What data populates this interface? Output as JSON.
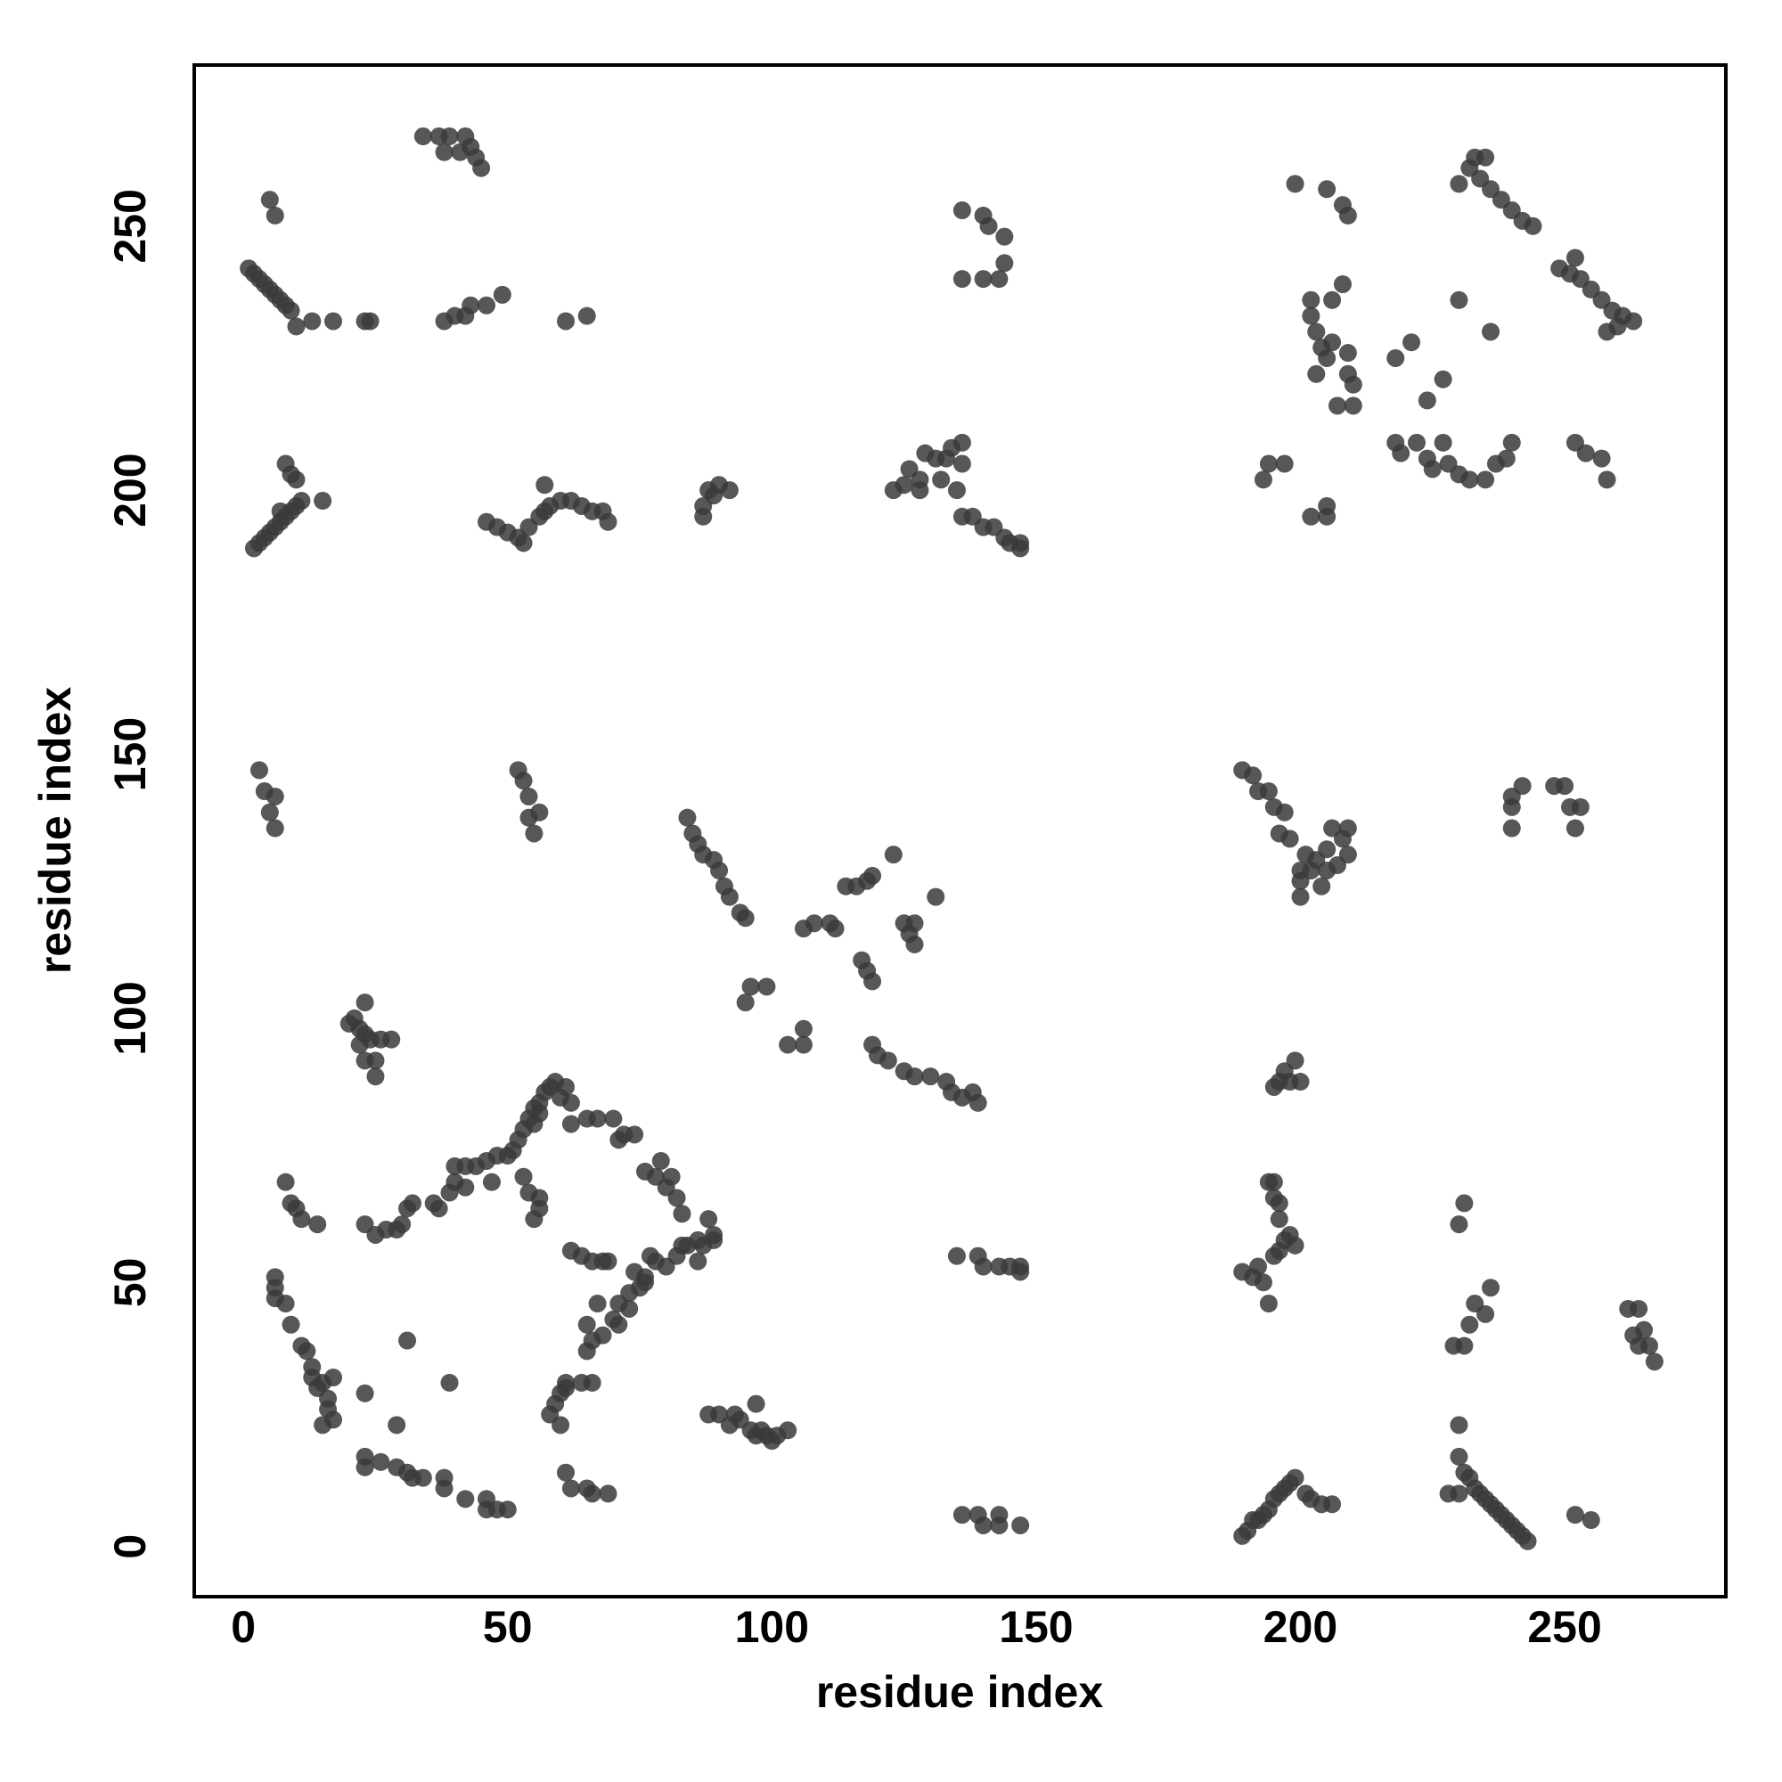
{
  "chart_data": {
    "type": "scatter",
    "x_label": "residue index",
    "y_label": "residue index",
    "color": "#3a3a3a",
    "xlim": [
      -9.3,
      280.5
    ],
    "ylim": [
      -9.5,
      280.5
    ],
    "xticks": [
      0,
      50,
      100,
      150,
      200,
      250
    ],
    "yticks": [
      0,
      50,
      100,
      150,
      200,
      250
    ],
    "grid": false,
    "x": [
      1,
      2,
      3,
      4,
      5,
      6,
      7,
      8,
      9,
      10,
      13,
      17,
      23,
      24,
      5,
      6,
      34,
      37,
      39,
      42,
      38,
      41,
      44,
      45,
      43,
      38,
      40,
      43,
      46,
      49,
      42,
      61,
      65,
      2,
      3,
      4,
      5,
      6,
      7,
      8,
      9,
      10,
      11,
      15,
      8,
      9,
      10,
      7,
      46,
      48,
      50,
      52,
      53,
      54,
      56,
      57,
      58,
      60,
      62,
      64,
      66,
      68,
      69,
      57,
      87,
      87,
      88,
      89,
      90,
      92,
      123,
      125,
      126,
      128,
      128,
      129,
      131,
      133,
      134,
      136,
      136,
      132,
      135,
      136,
      138,
      140,
      142,
      144,
      145,
      147,
      147,
      136,
      140,
      141,
      144,
      144,
      136,
      140,
      143,
      199,
      205,
      208,
      209,
      202,
      202,
      203,
      204,
      205,
      206,
      206,
      208,
      209,
      209,
      210,
      210,
      207,
      203,
      218,
      221,
      224,
      227,
      230,
      236,
      230,
      232,
      234,
      236,
      238,
      240,
      242,
      244,
      233,
      235,
      249,
      251,
      253,
      255,
      257,
      259,
      261,
      263,
      252,
      258,
      260,
      218,
      219,
      222,
      224,
      225,
      227,
      228,
      230,
      232,
      235,
      237,
      239,
      240,
      252,
      254,
      257,
      258,
      194,
      197,
      193,
      202,
      205,
      205,
      3,
      4,
      6,
      5,
      6,
      52,
      53,
      54,
      54,
      56,
      55,
      84,
      85,
      86,
      87,
      89,
      90,
      91,
      92,
      94,
      95,
      96,
      95,
      99,
      103,
      106,
      106,
      106,
      108,
      111,
      112,
      114,
      116,
      118,
      119,
      123,
      117,
      118,
      119,
      125,
      126,
      127,
      127,
      131,
      119,
      120,
      122,
      125,
      127,
      130,
      133,
      134,
      136,
      138,
      139,
      189,
      191,
      192,
      194,
      195,
      197,
      196,
      198,
      200,
      200,
      202,
      203,
      204,
      205,
      205,
      206,
      208,
      209,
      209,
      207,
      200,
      201,
      240,
      242,
      240,
      240,
      248,
      250,
      251,
      253,
      252,
      20,
      21,
      22,
      23,
      22,
      23,
      23,
      25,
      25,
      26,
      28,
      24,
      8,
      9,
      10,
      11,
      14,
      6,
      6,
      6,
      8,
      9,
      11,
      12,
      13,
      13,
      14,
      15,
      16,
      16,
      17,
      15,
      17,
      23,
      23,
      26,
      29,
      31,
      32,
      34,
      38,
      38,
      42,
      46,
      46,
      48,
      50,
      31,
      39,
      23,
      29,
      23,
      25,
      27,
      29,
      30,
      31,
      32,
      36,
      37,
      39,
      40,
      40,
      42,
      42,
      44,
      46,
      47,
      48,
      50,
      51,
      52,
      53,
      54,
      55,
      56,
      57,
      58,
      59,
      60,
      56,
      55,
      53,
      54,
      55,
      56,
      56,
      61,
      62,
      62,
      65,
      67,
      70,
      71,
      72,
      74,
      76,
      78,
      79,
      80,
      81,
      82,
      83,
      80,
      82,
      84,
      86,
      87,
      88,
      89,
      89,
      86,
      83,
      62,
      64,
      66,
      68,
      69,
      78,
      76,
      73,
      71,
      70,
      68,
      66,
      65,
      65,
      67,
      71,
      73,
      76,
      77,
      75,
      74,
      61,
      61,
      60,
      59,
      58,
      60,
      61,
      62,
      65,
      66,
      69,
      64,
      66,
      88,
      90,
      92,
      93,
      94,
      96,
      97,
      97,
      99,
      100,
      101,
      103,
      98,
      135,
      139,
      140,
      143,
      145,
      147,
      147,
      136,
      139,
      140,
      143,
      143,
      147,
      189,
      190,
      191,
      192,
      193,
      194,
      195,
      196,
      197,
      198,
      199,
      201,
      202,
      204,
      206,
      195,
      196,
      197,
      198,
      199,
      200,
      189,
      191,
      192,
      193,
      194,
      195,
      196,
      197,
      198,
      199,
      196,
      195,
      195,
      194,
      196,
      231,
      230,
      232,
      233,
      231,
      235,
      236,
      229,
      230,
      230,
      231,
      232,
      233,
      234,
      235,
      236,
      237,
      238,
      239,
      240,
      241,
      242,
      243,
      228,
      230,
      252,
      255,
      262,
      264,
      263,
      265,
      266,
      267,
      264
    ],
    "values": [
      242,
      241,
      240,
      239,
      238,
      237,
      236,
      235,
      234,
      231,
      232,
      232,
      232,
      232,
      255,
      252,
      267,
      267,
      267,
      267,
      264,
      264,
      263,
      261,
      265,
      232,
      233,
      235,
      235,
      237,
      233,
      232,
      233,
      189,
      190,
      191,
      192,
      193,
      194,
      195,
      196,
      197,
      198,
      198,
      205,
      203,
      202,
      196,
      194,
      193,
      192,
      191,
      190,
      193,
      195,
      196,
      197,
      198,
      198,
      197,
      196,
      196,
      194,
      201,
      195,
      197,
      200,
      199,
      201,
      200,
      200,
      201,
      204,
      202,
      200,
      207,
      206,
      206,
      208,
      209,
      205,
      202,
      200,
      195,
      195,
      193,
      193,
      191,
      190,
      190,
      189,
      253,
      252,
      250,
      248,
      243,
      240,
      240,
      240,
      258,
      257,
      254,
      252,
      236,
      233,
      230,
      227,
      225,
      228,
      236,
      239,
      226,
      222,
      220,
      216,
      216,
      222,
      225,
      228,
      217,
      221,
      236,
      230,
      258,
      261,
      259,
      257,
      255,
      253,
      251,
      250,
      263,
      263,
      242,
      241,
      240,
      238,
      236,
      234,
      233,
      232,
      244,
      230,
      231,
      209,
      207,
      209,
      206,
      204,
      209,
      205,
      203,
      202,
      202,
      205,
      206,
      209,
      209,
      207,
      206,
      202,
      205,
      205,
      202,
      195,
      197,
      195,
      147,
      143,
      142,
      139,
      136,
      147,
      145,
      142,
      138,
      139,
      135,
      138,
      135,
      133,
      131,
      130,
      128,
      125,
      123,
      120,
      119,
      106,
      103,
      106,
      95,
      95,
      98,
      117,
      118,
      118,
      117,
      125,
      125,
      126,
      127,
      131,
      111,
      109,
      107,
      118,
      116,
      114,
      118,
      123,
      95,
      93,
      92,
      90,
      89,
      89,
      88,
      86,
      85,
      86,
      84,
      147,
      146,
      143,
      143,
      140,
      139,
      135,
      134,
      126,
      128,
      128,
      130,
      125,
      128,
      132,
      136,
      134,
      131,
      136,
      129,
      123,
      131,
      142,
      144,
      140,
      136,
      144,
      144,
      140,
      140,
      136,
      99,
      100,
      98,
      97,
      95,
      103,
      92,
      92,
      89,
      96,
      96,
      96,
      69,
      65,
      64,
      62,
      61,
      51,
      49,
      47,
      46,
      42,
      38,
      37,
      34,
      32,
      30,
      31,
      28,
      26,
      32,
      23,
      24,
      15,
      17,
      16,
      15,
      14,
      13,
      13,
      13,
      11,
      9,
      9,
      7,
      7,
      7,
      39,
      31,
      29,
      23,
      61,
      59,
      60,
      60,
      61,
      64,
      65,
      65,
      64,
      67,
      69,
      72,
      72,
      68,
      72,
      73,
      69,
      74,
      74,
      75,
      77,
      79,
      81,
      83,
      84,
      86,
      87,
      88,
      85,
      82,
      80,
      70,
      67,
      62,
      64,
      66,
      87,
      84,
      80,
      81,
      81,
      81,
      77,
      78,
      78,
      71,
      70,
      73,
      68,
      70,
      66,
      63,
      53,
      55,
      57,
      58,
      57,
      62,
      59,
      58,
      54,
      57,
      56,
      55,
      54,
      54,
      54,
      54,
      50,
      48,
      46,
      43,
      40,
      39,
      37,
      42,
      46,
      42,
      45,
      51,
      55,
      49,
      52,
      30,
      31,
      29,
      27,
      25,
      23,
      14,
      11,
      11,
      10,
      10,
      31,
      31,
      25,
      25,
      23,
      25,
      24,
      22,
      27,
      21,
      21,
      20,
      21,
      22,
      22,
      55,
      55,
      53,
      53,
      53,
      52,
      53,
      6,
      6,
      4,
      6,
      4,
      4,
      2,
      3,
      5,
      5,
      6,
      7,
      9,
      10,
      11,
      12,
      13,
      10,
      9,
      8,
      8,
      87,
      88,
      90,
      88,
      92,
      88,
      52,
      51,
      53,
      50,
      46,
      55,
      56,
      58,
      59,
      57,
      62,
      66,
      69,
      69,
      65,
      65,
      61,
      42,
      46,
      38,
      44,
      49,
      38,
      23,
      17,
      14,
      13,
      11,
      10,
      9,
      8,
      7,
      6,
      5,
      4,
      3,
      2,
      1,
      10,
      10,
      6,
      5,
      45,
      45,
      40,
      41,
      38,
      35,
      38
    ]
  }
}
